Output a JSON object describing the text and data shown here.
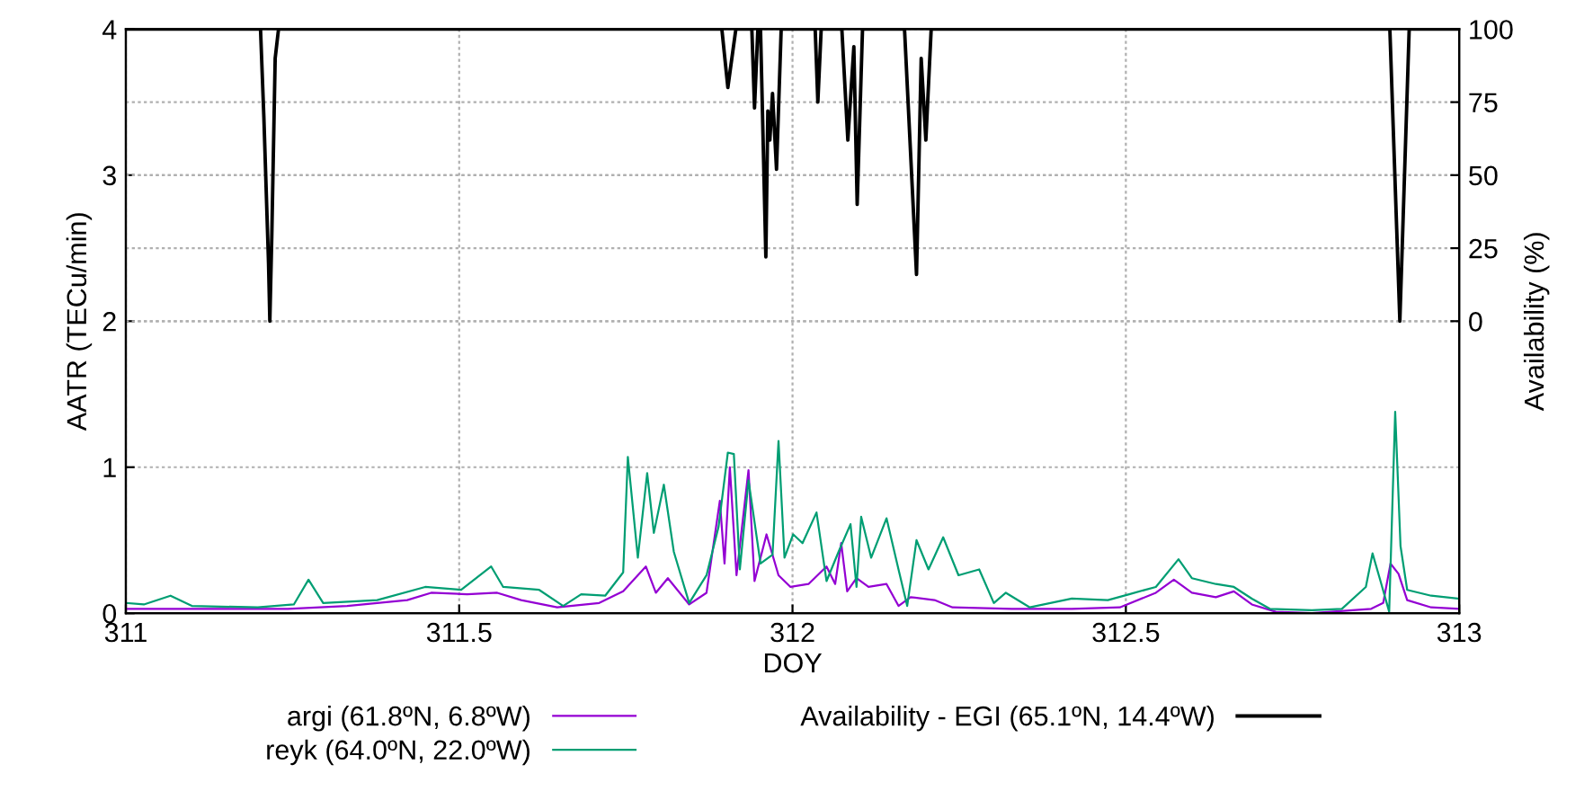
{
  "chart_data": {
    "type": "line",
    "xlabel": "DOY",
    "ylabel": "AATR (TECu/min)",
    "y2label": "Availability (%)",
    "xlim": [
      311,
      313
    ],
    "xticks": [
      311,
      311.5,
      312,
      312.5,
      313
    ],
    "ylim": [
      0,
      4
    ],
    "yticks": [
      0,
      1,
      2,
      3,
      4
    ],
    "y2lim": [
      -100,
      100
    ],
    "y2ticks": [
      0,
      25,
      50,
      75,
      100
    ],
    "grid": true,
    "legend": "bottom",
    "marker": "none",
    "line_style": "solid",
    "series": [
      {
        "name": "argi (61.8ºN, 6.8ºW)",
        "color": "#9400d3",
        "x": [
          311.0,
          311.243,
          311.332,
          311.422,
          311.458,
          311.512,
          311.557,
          311.593,
          311.647,
          311.71,
          311.746,
          311.78,
          311.795,
          311.813,
          311.845,
          311.871,
          311.891,
          311.898,
          311.906,
          311.916,
          311.934,
          311.943,
          311.961,
          311.979,
          311.997,
          312.024,
          312.051,
          312.064,
          312.073,
          312.082,
          312.096,
          312.114,
          312.141,
          312.159,
          312.177,
          312.213,
          312.24,
          312.329,
          312.419,
          312.491,
          312.545,
          312.572,
          312.599,
          312.635,
          312.662,
          312.689,
          312.725,
          312.779,
          312.868,
          312.886,
          312.897,
          312.909,
          312.922,
          312.958,
          313.0
        ],
        "values": [
          0.03,
          0.03,
          0.05,
          0.09,
          0.14,
          0.13,
          0.14,
          0.09,
          0.04,
          0.07,
          0.15,
          0.32,
          0.14,
          0.24,
          0.06,
          0.14,
          0.77,
          0.34,
          1.0,
          0.26,
          0.98,
          0.22,
          0.54,
          0.26,
          0.18,
          0.2,
          0.32,
          0.2,
          0.48,
          0.15,
          0.24,
          0.18,
          0.2,
          0.05,
          0.11,
          0.09,
          0.04,
          0.03,
          0.03,
          0.04,
          0.14,
          0.23,
          0.14,
          0.11,
          0.15,
          0.06,
          0.01,
          0.0,
          0.03,
          0.07,
          0.34,
          0.27,
          0.09,
          0.04,
          0.03
        ]
      },
      {
        "name": "reyk (64.0ºN, 22.0ºW)",
        "color": "#009e73",
        "x": [
          311.0,
          311.027,
          311.067,
          311.099,
          311.198,
          311.252,
          311.274,
          311.296,
          311.377,
          311.449,
          311.503,
          311.548,
          311.566,
          311.62,
          311.656,
          311.683,
          311.719,
          311.746,
          311.753,
          311.768,
          311.782,
          311.792,
          311.807,
          311.822,
          311.845,
          311.871,
          311.889,
          311.903,
          311.912,
          311.921,
          311.934,
          311.952,
          311.97,
          311.979,
          311.988,
          312.001,
          312.015,
          312.036,
          312.051,
          312.069,
          312.087,
          312.096,
          312.103,
          312.118,
          312.141,
          312.159,
          312.172,
          312.186,
          312.204,
          312.226,
          312.249,
          312.28,
          312.302,
          312.32,
          312.356,
          312.419,
          312.473,
          312.505,
          312.545,
          312.579,
          312.599,
          312.635,
          312.662,
          312.689,
          312.716,
          312.779,
          312.824,
          312.86,
          312.87,
          312.882,
          312.895,
          312.904,
          312.912,
          312.922,
          312.958,
          313.0
        ],
        "values": [
          0.07,
          0.06,
          0.12,
          0.05,
          0.04,
          0.06,
          0.23,
          0.07,
          0.09,
          0.18,
          0.16,
          0.32,
          0.18,
          0.16,
          0.05,
          0.13,
          0.12,
          0.28,
          1.07,
          0.38,
          0.96,
          0.55,
          0.88,
          0.42,
          0.07,
          0.26,
          0.59,
          1.1,
          1.09,
          0.3,
          0.91,
          0.34,
          0.4,
          1.18,
          0.38,
          0.54,
          0.48,
          0.69,
          0.22,
          0.42,
          0.61,
          0.18,
          0.66,
          0.38,
          0.65,
          0.3,
          0.05,
          0.5,
          0.3,
          0.52,
          0.26,
          0.3,
          0.07,
          0.14,
          0.04,
          0.1,
          0.09,
          0.13,
          0.18,
          0.37,
          0.24,
          0.2,
          0.18,
          0.1,
          0.03,
          0.02,
          0.03,
          0.18,
          0.41,
          0.22,
          0.01,
          1.38,
          0.46,
          0.16,
          0.12,
          0.1
        ]
      },
      {
        "name": "Availability - EGI (65.1ºN, 14.4ºW)",
        "color": "#000000",
        "axis": "y2",
        "x": [
          311.0,
          311.202,
          311.207,
          311.214,
          311.216,
          311.219,
          311.224,
          311.229,
          311.894,
          311.903,
          311.915,
          311.939,
          311.943,
          311.948,
          311.952,
          311.96,
          311.963,
          311.966,
          311.97,
          311.976,
          311.983,
          312.034,
          312.038,
          312.043,
          312.074,
          312.083,
          312.092,
          312.097,
          312.105,
          312.168,
          312.186,
          312.193,
          312.2,
          312.208,
          312.896,
          312.911,
          312.925,
          313.0
        ],
        "values": [
          100,
          100,
          70,
          20,
          0,
          30,
          90,
          100,
          100,
          80,
          100,
          100,
          73,
          100,
          100,
          22,
          72,
          62,
          78,
          52,
          100,
          100,
          75,
          100,
          100,
          62,
          94,
          40,
          100,
          100,
          16,
          90,
          62,
          100,
          100,
          0,
          100,
          100
        ]
      }
    ]
  }
}
